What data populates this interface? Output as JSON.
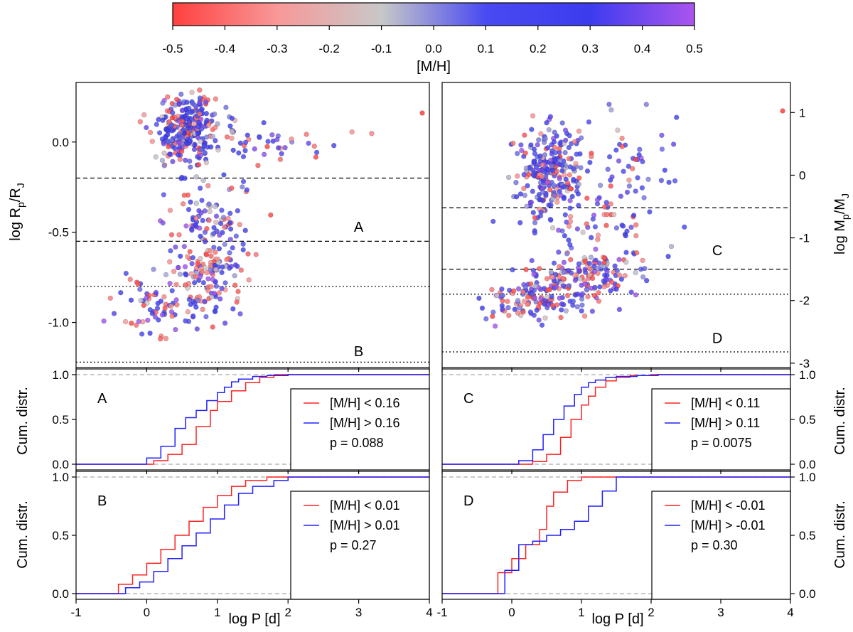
{
  "colorbar": {
    "label": "[M/H]",
    "range": [
      -0.5,
      0.5
    ],
    "ticks": [
      "-0.5",
      "-0.4",
      "-0.3",
      "-0.2",
      "-0.1",
      "0.0",
      "0.1",
      "0.2",
      "0.3",
      "0.4",
      "0.5"
    ],
    "stops": [
      "#ff4040",
      "#f89898",
      "#c8c8c8",
      "#4a4af2",
      "#3c3cee",
      "#aa55ee"
    ]
  },
  "colors": {
    "low_metal": "#ff2020",
    "high_metal": "#2020ff",
    "reference": "#b8b8b8"
  },
  "chart_data": [
    {
      "type": "scatter",
      "name": "radius-period",
      "xlabel": "log P [d]",
      "ylabel": "log R_p/R_J",
      "xlim": [
        -1,
        4
      ],
      "ylim": [
        -1.25,
        0.33
      ],
      "y_ticks": [
        "-1.0",
        "-0.5",
        "0.0"
      ],
      "boundaries": [
        {
          "y": -0.2,
          "style": "dashed"
        },
        {
          "y": -0.55,
          "style": "dashed"
        },
        {
          "y": -0.8,
          "style": "dotted"
        },
        {
          "y": -1.22,
          "style": "dotted"
        }
      ],
      "regions": [
        {
          "label": "A",
          "x": 3.0,
          "y": -0.47
        },
        {
          "label": "B",
          "x": 3.0,
          "y": -1.16
        }
      ],
      "point_count": 620
    },
    {
      "type": "scatter",
      "name": "mass-period",
      "xlabel": "log P [d]",
      "ylabel": "log M_p/M_J",
      "xlim": [
        -1,
        4
      ],
      "ylim": [
        -3.07,
        1.48
      ],
      "y_ticks": [
        "1",
        "0",
        "-1",
        "-2",
        "-3"
      ],
      "boundaries": [
        {
          "y": -0.52,
          "style": "dashed"
        },
        {
          "y": -1.5,
          "style": "dashed"
        },
        {
          "y": -1.9,
          "style": "dotted"
        },
        {
          "y": -2.82,
          "style": "dotted"
        }
      ],
      "regions": [
        {
          "label": "C",
          "x": 2.95,
          "y": -1.2
        },
        {
          "label": "D",
          "x": 2.95,
          "y": -2.6
        }
      ],
      "point_count": 640
    },
    {
      "type": "line",
      "name": "cdf-A",
      "panel_label": "A",
      "ylabel": "Cum. distr.",
      "y_ticks": [
        "0.0",
        "0.5",
        "1.0"
      ],
      "series": [
        {
          "name": "[M/H] < 0.16",
          "x": [
            -0.1,
            0.1,
            0.3,
            0.5,
            0.7,
            0.9,
            1.0,
            1.2,
            1.4,
            1.6,
            1.8,
            2.4
          ],
          "y": [
            0.0,
            0.04,
            0.11,
            0.22,
            0.42,
            0.6,
            0.7,
            0.82,
            0.91,
            0.97,
            1.0,
            1.0
          ]
        },
        {
          "name": "[M/H] > 0.16",
          "x": [
            -0.35,
            0.0,
            0.2,
            0.4,
            0.55,
            0.7,
            0.85,
            1.0,
            1.1,
            1.2,
            1.3,
            1.5,
            1.7,
            2.0,
            3.7
          ],
          "y": [
            0.0,
            0.07,
            0.2,
            0.4,
            0.52,
            0.6,
            0.71,
            0.8,
            0.86,
            0.92,
            0.95,
            0.98,
            0.99,
            1.0,
            1.0
          ]
        }
      ],
      "p_value": "p =  0.088"
    },
    {
      "type": "line",
      "name": "cdf-B",
      "panel_label": "B",
      "ylabel": "Cum. distr.",
      "y_ticks": [
        "0.0",
        "0.5",
        "1.0"
      ],
      "series": [
        {
          "name": "[M/H] < 0.01",
          "x": [
            -0.55,
            -0.4,
            -0.2,
            0.0,
            0.2,
            0.4,
            0.6,
            0.8,
            1.0,
            1.2,
            1.4,
            1.7
          ],
          "y": [
            0.0,
            0.08,
            0.16,
            0.26,
            0.38,
            0.5,
            0.62,
            0.74,
            0.84,
            0.92,
            0.97,
            1.0
          ]
        },
        {
          "name": "[M/H] > 0.01",
          "x": [
            -0.45,
            -0.3,
            -0.1,
            0.1,
            0.3,
            0.5,
            0.7,
            0.9,
            1.1,
            1.3,
            1.5,
            1.8,
            2.0,
            2.5,
            3.9
          ],
          "y": [
            0.0,
            0.05,
            0.1,
            0.19,
            0.3,
            0.41,
            0.52,
            0.64,
            0.76,
            0.86,
            0.92,
            0.97,
            1.0,
            1.0,
            1.0
          ]
        }
      ],
      "p_value": "p =  0.27"
    },
    {
      "type": "line",
      "name": "cdf-C",
      "panel_label": "C",
      "ylabel": "Cum. distr.",
      "y_ticks": [
        "0.0",
        "0.5",
        "1.0"
      ],
      "series": [
        {
          "name": "[M/H] < 0.11",
          "x": [
            0.0,
            0.3,
            0.5,
            0.7,
            0.85,
            1.0,
            1.1,
            1.2,
            1.35,
            1.5,
            1.7,
            2.0,
            2.5
          ],
          "y": [
            0.0,
            0.03,
            0.11,
            0.3,
            0.5,
            0.66,
            0.76,
            0.86,
            0.93,
            0.97,
            0.99,
            1.0,
            1.0
          ]
        },
        {
          "name": "[M/H] > 0.11",
          "x": [
            -0.2,
            0.1,
            0.3,
            0.45,
            0.6,
            0.75,
            0.9,
            1.0,
            1.1,
            1.2,
            1.35,
            1.5,
            1.8,
            2.1,
            3.9
          ],
          "y": [
            0.0,
            0.04,
            0.16,
            0.33,
            0.5,
            0.65,
            0.78,
            0.86,
            0.91,
            0.94,
            0.97,
            0.98,
            0.99,
            1.0,
            1.0
          ]
        }
      ],
      "p_value": "p =  0.0075"
    },
    {
      "type": "line",
      "name": "cdf-D",
      "panel_label": "D",
      "ylabel": "Cum. distr.",
      "y_ticks": [
        "0.0",
        "0.5",
        "1.0"
      ],
      "series": [
        {
          "name": "[M/H] < -0.01",
          "x": [
            -0.4,
            -0.2,
            0.0,
            0.2,
            0.4,
            0.5,
            0.6,
            0.8,
            1.0
          ],
          "y": [
            0.0,
            0.18,
            0.3,
            0.42,
            0.55,
            0.75,
            0.87,
            0.97,
            1.0
          ]
        },
        {
          "name": "[M/H] > -0.01",
          "x": [
            -0.35,
            -0.1,
            0.1,
            0.3,
            0.5,
            0.7,
            0.9,
            1.1,
            1.3,
            1.5,
            3.9
          ],
          "y": [
            0.0,
            0.2,
            0.42,
            0.45,
            0.5,
            0.55,
            0.62,
            0.75,
            0.88,
            1.0,
            1.0
          ]
        }
      ],
      "p_value": "p =  0.30"
    }
  ]
}
